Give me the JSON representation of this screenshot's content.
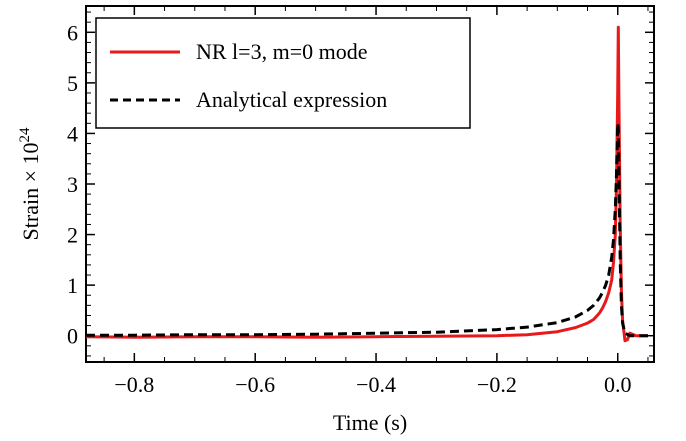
{
  "chart_data": {
    "type": "line",
    "xlabel": "Time (s)",
    "ylabel_base": "Strain × 10",
    "ylabel_exponent": "24",
    "xlim": [
      -0.88,
      0.06
    ],
    "ylim": [
      -0.52,
      6.52
    ],
    "xticks": [
      -0.8,
      -0.6,
      -0.4,
      -0.2,
      0.0
    ],
    "xtick_labels": [
      "−0.8",
      "−0.6",
      "−0.4",
      "−0.2",
      "0.0"
    ],
    "yticks": [
      0,
      1,
      2,
      3,
      4,
      5,
      6
    ],
    "ytick_labels": [
      "0",
      "1",
      "2",
      "3",
      "4",
      "5",
      "6"
    ],
    "legend_position": "top-left",
    "series": [
      {
        "name": "NR l=3, m=0 mode",
        "color": "#e8191b",
        "style": "solid",
        "x": [
          -0.88,
          -0.8,
          -0.7,
          -0.6,
          -0.5,
          -0.4,
          -0.3,
          -0.2,
          -0.15,
          -0.1,
          -0.07,
          -0.05,
          -0.04,
          -0.03,
          -0.025,
          -0.02,
          -0.015,
          -0.01,
          -0.007,
          -0.004,
          -0.002,
          0.0,
          0.001,
          0.002,
          0.004,
          0.006,
          0.008,
          0.012,
          0.016,
          0.02,
          0.03,
          0.04,
          0.05
        ],
        "y": [
          -0.02,
          -0.03,
          -0.02,
          -0.02,
          -0.03,
          -0.02,
          -0.01,
          0.0,
          0.02,
          0.08,
          0.16,
          0.25,
          0.32,
          0.45,
          0.55,
          0.68,
          0.85,
          1.1,
          1.45,
          2.0,
          3.0,
          4.8,
          6.1,
          4.5,
          2.2,
          0.9,
          0.3,
          -0.1,
          -0.08,
          0.05,
          0.0,
          0.0,
          0.0
        ]
      },
      {
        "name": "Analytical expression",
        "color": "#000000",
        "style": "dashed",
        "x": [
          -0.88,
          -0.8,
          -0.7,
          -0.6,
          -0.5,
          -0.4,
          -0.3,
          -0.2,
          -0.15,
          -0.1,
          -0.07,
          -0.05,
          -0.04,
          -0.03,
          -0.025,
          -0.02,
          -0.015,
          -0.01,
          -0.007,
          -0.004,
          -0.002,
          0.0,
          0.001,
          0.002,
          0.004,
          0.006,
          0.008,
          0.012,
          0.02,
          0.03,
          0.04,
          0.05
        ],
        "y": [
          0.01,
          0.01,
          0.02,
          0.02,
          0.03,
          0.05,
          0.07,
          0.12,
          0.17,
          0.26,
          0.37,
          0.5,
          0.6,
          0.75,
          0.86,
          1.0,
          1.2,
          1.55,
          1.9,
          2.5,
          3.2,
          4.2,
          4.1,
          3.1,
          1.5,
          0.6,
          0.25,
          0.05,
          0.0,
          0.0,
          0.0,
          0.0
        ]
      }
    ]
  }
}
